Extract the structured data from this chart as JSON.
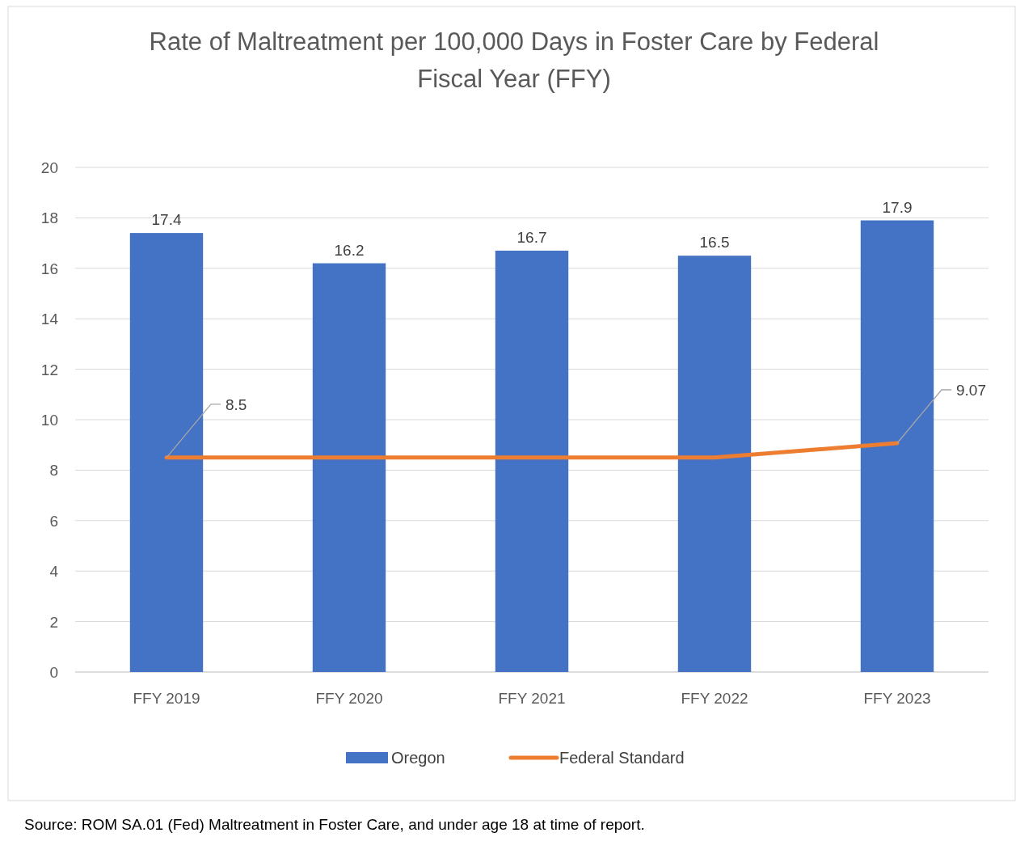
{
  "chart_data": {
    "type": "bar",
    "title": "Rate of Maltreatment per 100,000 Days in Foster Care by Federal Fiscal Year (FFY)",
    "categories": [
      "FFY 2019",
      "FFY 2020",
      "FFY 2021",
      "FFY 2022",
      "FFY 2023"
    ],
    "series": [
      {
        "name": "Oregon",
        "color": "#4472c4",
        "values": [
          17.4,
          16.2,
          16.7,
          16.5,
          17.9
        ],
        "data_labels": true
      },
      {
        "name": "Federal Standard",
        "type": "line",
        "color": "#ed7d31",
        "values": [
          8.5,
          8.5,
          8.5,
          8.5,
          9.07
        ],
        "value_labels": [
          "8.5",
          null,
          null,
          null,
          "9.07"
        ]
      }
    ],
    "ylim": [
      0,
      20
    ],
    "yticks": [
      0,
      2,
      4,
      6,
      8,
      10,
      12,
      14,
      16,
      18,
      20
    ],
    "grid": "y",
    "legend": "bottom",
    "marker": "none",
    "annotations": [
      "Source:  ROM SA.01 (Fed) Maltreatment in Foster Care, and under age 18 at time of report."
    ]
  }
}
